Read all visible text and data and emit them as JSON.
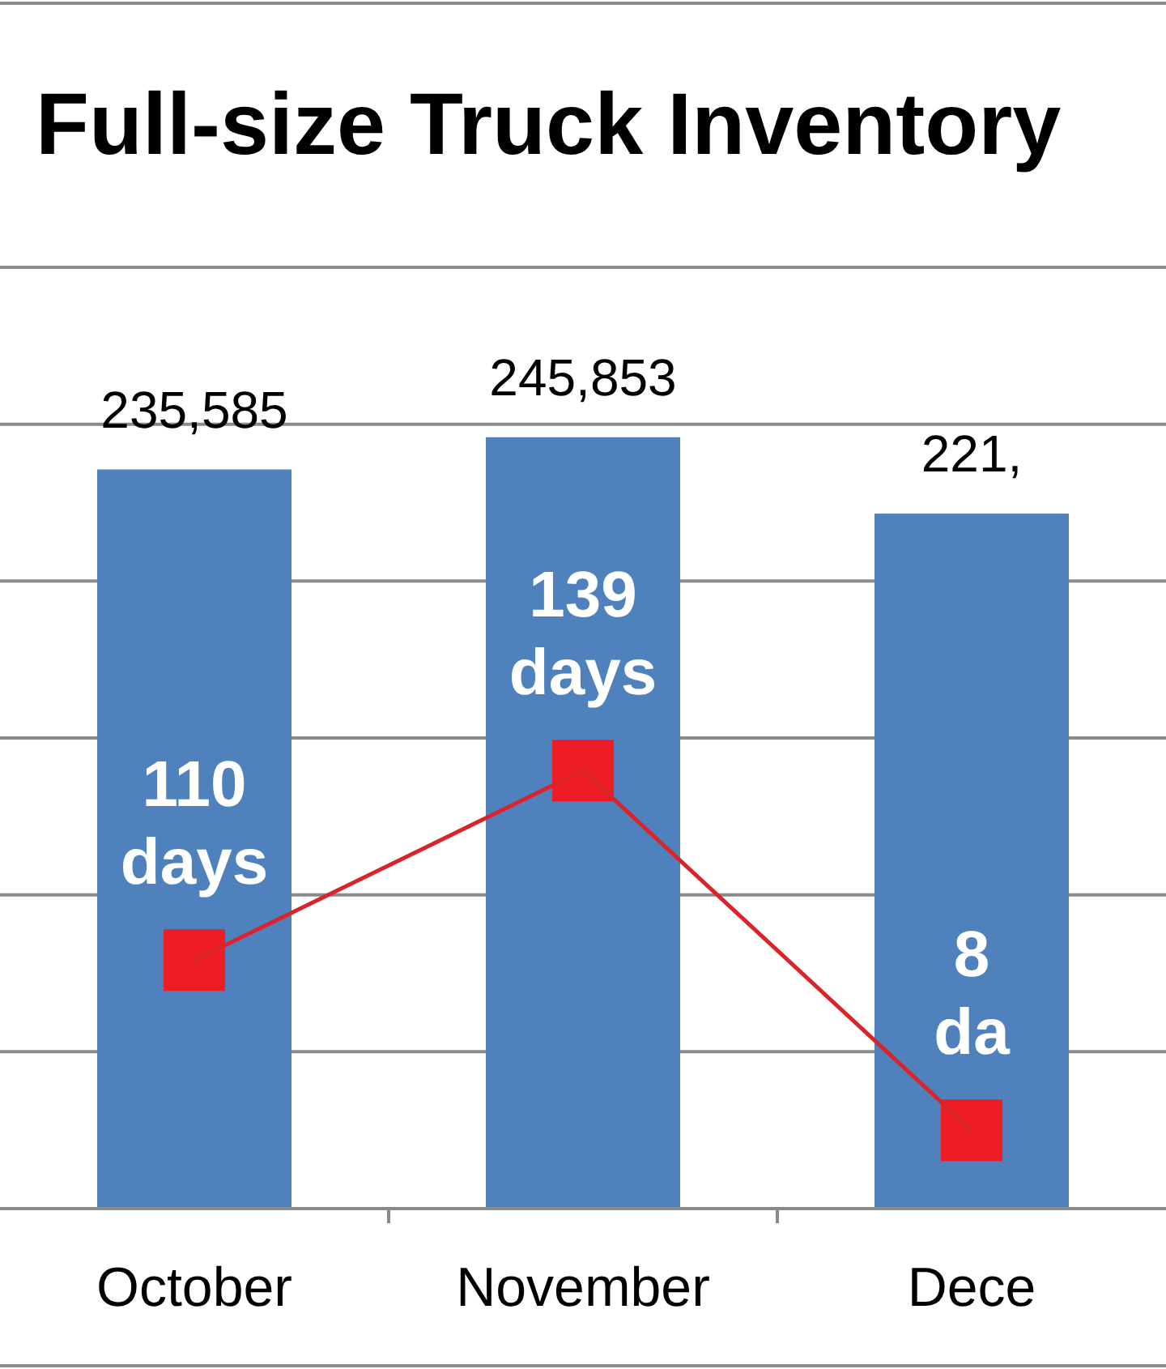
{
  "chart_data": {
    "type": "bar",
    "title": "Full-size Truck Inventory",
    "categories": [
      "October",
      "November",
      "Dece"
    ],
    "series": [
      {
        "color": "#4f81bd",
        "values": [
          235585,
          245853,
          221500
        ],
        "value_labels": [
          "235,585",
          "245,853",
          null
        ]
      },
      {
        "type": "line",
        "axis": "y2",
        "color": "#d9242b",
        "colors": [
          "#ee1c25",
          "#ee1c25",
          "#ee1c25"
        ],
        "values": [
          110,
          139,
          84
        ],
        "value_labels": [
          "110 days",
          "139 days",
          null
        ]
      }
    ],
    "annotations": [
      {
        "text": "221,",
        "x": "Dece",
        "y": 221500
      },
      {
        "text": "8 da",
        "x": "Dece",
        "y": 84
      }
    ],
    "ylim": [
      0,
      300000
    ],
    "yticks": [
      {
        "value": 0,
        "label": null
      },
      {
        "value": 50000,
        "label": null
      },
      {
        "value": 100000,
        "label": null
      },
      {
        "value": 150000,
        "label": null
      },
      {
        "value": 200000,
        "label": null
      },
      {
        "value": 250000,
        "label": null
      },
      {
        "value": 300000,
        "label": null
      }
    ],
    "y2lim": [
      72,
      216
    ],
    "grid": "y",
    "marker": "square",
    "tick_labels": "x"
  }
}
